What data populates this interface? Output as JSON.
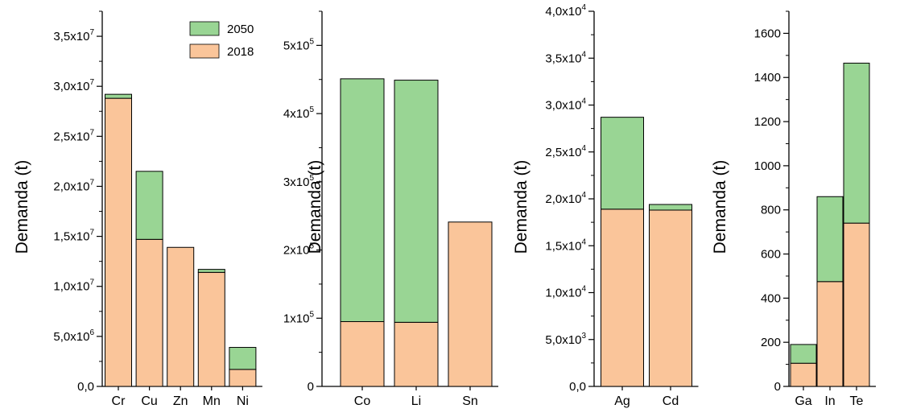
{
  "colors": {
    "series_2050": "#99d594",
    "series_2018": "#fac59a",
    "axis": "#000000"
  },
  "legend": {
    "items": [
      {
        "label": "2050",
        "color": "#99d594"
      },
      {
        "label": "2018",
        "color": "#fac59a"
      }
    ]
  },
  "chart_data": [
    {
      "type": "bar",
      "stacked": true,
      "ylabel": "Demanda (t)",
      "categories": [
        "Cr",
        "Cu",
        "Zn",
        "Mn",
        "Ni"
      ],
      "ylim": [
        0,
        37500000
      ],
      "ticks": [
        {
          "v": 0,
          "m": "0,0",
          "e": ""
        },
        {
          "v": 5000000,
          "m": "5,0x10",
          "e": "6"
        },
        {
          "v": 10000000,
          "m": "1,0x10",
          "e": "7"
        },
        {
          "v": 15000000,
          "m": "1,5x10",
          "e": "7"
        },
        {
          "v": 20000000,
          "m": "2,0x10",
          "e": "7"
        },
        {
          "v": 25000000,
          "m": "2,5x10",
          "e": "7"
        },
        {
          "v": 30000000,
          "m": "3,0x10",
          "e": "7"
        },
        {
          "v": 35000000,
          "m": "3,5x10",
          "e": "7"
        }
      ],
      "series": [
        {
          "name": "2018",
          "values": [
            28800000,
            14700000,
            13900000,
            11400000,
            1700000
          ]
        },
        {
          "name": "2050",
          "values": [
            400000,
            6800000,
            0,
            300000,
            2200000
          ]
        }
      ]
    },
    {
      "type": "bar",
      "stacked": true,
      "ylabel": "Demanda (t)",
      "categories": [
        "Co",
        "Li",
        "Sn"
      ],
      "ylim": [
        0,
        550000
      ],
      "ticks": [
        {
          "v": 0,
          "m": "0",
          "e": ""
        },
        {
          "v": 100000,
          "m": "1x10",
          "e": "5"
        },
        {
          "v": 200000,
          "m": "2x10",
          "e": "5"
        },
        {
          "v": 300000,
          "m": "3x10",
          "e": "5"
        },
        {
          "v": 400000,
          "m": "4x10",
          "e": "5"
        },
        {
          "v": 500000,
          "m": "5x10",
          "e": "5"
        }
      ],
      "series": [
        {
          "name": "2018",
          "values": [
            95000,
            94000,
            241000
          ]
        },
        {
          "name": "2050",
          "values": [
            356000,
            355000,
            0
          ]
        }
      ]
    },
    {
      "type": "bar",
      "stacked": true,
      "ylabel": "Demanda (t)",
      "categories": [
        "Ag",
        "Cd"
      ],
      "ylim": [
        0,
        40000
      ],
      "ticks": [
        {
          "v": 0,
          "m": "0,0",
          "e": ""
        },
        {
          "v": 5000,
          "m": "5,0x10",
          "e": "3"
        },
        {
          "v": 10000,
          "m": "1,0x10",
          "e": "4"
        },
        {
          "v": 15000,
          "m": "1,5x10",
          "e": "4"
        },
        {
          "v": 20000,
          "m": "2,0x10",
          "e": "4"
        },
        {
          "v": 25000,
          "m": "2,5x10",
          "e": "4"
        },
        {
          "v": 30000,
          "m": "3,0x10",
          "e": "4"
        },
        {
          "v": 35000,
          "m": "3,5x10",
          "e": "4"
        },
        {
          "v": 40000,
          "m": "4,0x10",
          "e": "4"
        }
      ],
      "series": [
        {
          "name": "2018",
          "values": [
            18900,
            18800
          ]
        },
        {
          "name": "2050",
          "values": [
            9800,
            600
          ]
        }
      ]
    },
    {
      "type": "bar",
      "stacked": true,
      "ylabel": "Demanda (t)",
      "categories": [
        "Ga",
        "In",
        "Te"
      ],
      "ylim": [
        0,
        1700
      ],
      "ticks": [
        {
          "v": 0,
          "m": "0",
          "e": ""
        },
        {
          "v": 200,
          "m": "200",
          "e": ""
        },
        {
          "v": 400,
          "m": "400",
          "e": ""
        },
        {
          "v": 600,
          "m": "600",
          "e": ""
        },
        {
          "v": 800,
          "m": "800",
          "e": ""
        },
        {
          "v": 1000,
          "m": "1000",
          "e": ""
        },
        {
          "v": 1200,
          "m": "1200",
          "e": ""
        },
        {
          "v": 1400,
          "m": "1400",
          "e": ""
        },
        {
          "v": 1600,
          "m": "1600",
          "e": ""
        }
      ],
      "series": [
        {
          "name": "2018",
          "values": [
            105,
            475,
            740
          ]
        },
        {
          "name": "2050",
          "values": [
            85,
            385,
            725
          ]
        }
      ]
    }
  ]
}
